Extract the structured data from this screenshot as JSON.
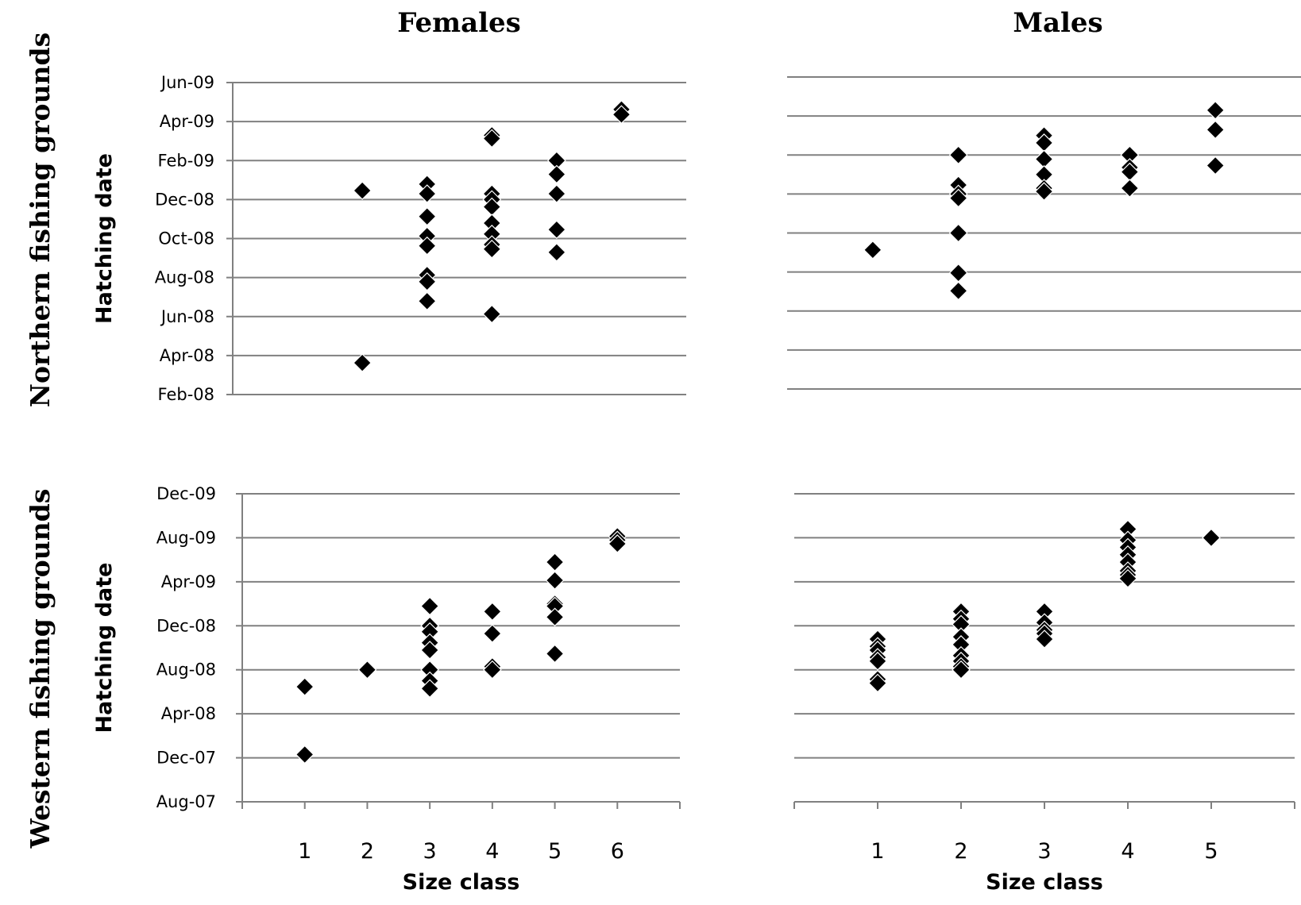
{
  "figure": {
    "column_titles": [
      "Females",
      "Males"
    ],
    "row_titles": [
      "Northern fishing grounds",
      "Western fishing grounds"
    ]
  },
  "chart_data": [
    {
      "panel": "females-northern",
      "type": "scatter",
      "column": "Females",
      "row": "Northern fishing grounds",
      "ylabel": "Hatching date",
      "xlabel": "",
      "y_axis": "date",
      "ylim": [
        "2008-02-01",
        "2009-06-01"
      ],
      "yticks": [
        "Feb-08",
        "Apr-08",
        "Jun-08",
        "Aug-08",
        "Oct-08",
        "Dec-08",
        "Feb-09",
        "Apr-09",
        "Jun-09"
      ],
      "show_ytick_labels": true,
      "xlim": [
        0,
        7
      ],
      "xticks": [],
      "x_axis_ticks": false,
      "grid": true,
      "points": [
        {
          "x": 2,
          "y": "2008-12-15"
        },
        {
          "x": 2,
          "y": "2008-03-20"
        },
        {
          "x": 3,
          "y": "2008-12-25"
        },
        {
          "x": 3,
          "y": "2008-12-10"
        },
        {
          "x": 3,
          "y": "2008-11-05"
        },
        {
          "x": 3,
          "y": "2008-10-05"
        },
        {
          "x": 3,
          "y": "2008-09-20"
        },
        {
          "x": 3,
          "y": "2008-08-05"
        },
        {
          "x": 3,
          "y": "2008-07-25"
        },
        {
          "x": 3,
          "y": "2008-06-25"
        },
        {
          "x": 4,
          "y": "2009-03-10"
        },
        {
          "x": 4,
          "y": "2009-03-05"
        },
        {
          "x": 4,
          "y": "2008-12-10"
        },
        {
          "x": 4,
          "y": "2008-12-01"
        },
        {
          "x": 4,
          "y": "2008-11-20"
        },
        {
          "x": 4,
          "y": "2008-10-25"
        },
        {
          "x": 4,
          "y": "2008-10-08"
        },
        {
          "x": 4,
          "y": "2008-09-22"
        },
        {
          "x": 4,
          "y": "2008-09-15"
        },
        {
          "x": 4,
          "y": "2008-06-05"
        },
        {
          "x": 5,
          "y": "2009-02-01"
        },
        {
          "x": 5,
          "y": "2009-01-10"
        },
        {
          "x": 5,
          "y": "2008-12-10"
        },
        {
          "x": 5,
          "y": "2008-10-15"
        },
        {
          "x": 5,
          "y": "2008-09-10"
        },
        {
          "x": 6,
          "y": "2009-04-20"
        },
        {
          "x": 6,
          "y": "2009-04-12"
        }
      ]
    },
    {
      "panel": "males-northern",
      "type": "scatter",
      "column": "Males",
      "row": "Northern fishing grounds",
      "ylabel": "",
      "xlabel": "",
      "y_axis": "date",
      "ylim": [
        "2008-02-01",
        "2009-06-01"
      ],
      "yticks": [
        "Feb-08",
        "Apr-08",
        "Jun-08",
        "Aug-08",
        "Oct-08",
        "Dec-08",
        "Feb-09",
        "Apr-09",
        "Jun-09"
      ],
      "show_ytick_labels": false,
      "xlim": [
        0,
        6
      ],
      "xticks": [],
      "x_axis_ticks": false,
      "grid": true,
      "points": [
        {
          "x": 1,
          "y": "2008-09-05"
        },
        {
          "x": 2,
          "y": "2009-02-01"
        },
        {
          "x": 2,
          "y": "2008-12-15"
        },
        {
          "x": 2,
          "y": "2008-12-01"
        },
        {
          "x": 2,
          "y": "2008-11-25"
        },
        {
          "x": 2,
          "y": "2008-10-01"
        },
        {
          "x": 2,
          "y": "2008-07-30"
        },
        {
          "x": 2,
          "y": "2008-07-02"
        },
        {
          "x": 3,
          "y": "2009-03-01"
        },
        {
          "x": 3,
          "y": "2009-02-20"
        },
        {
          "x": 3,
          "y": "2009-01-25"
        },
        {
          "x": 3,
          "y": "2009-01-01"
        },
        {
          "x": 3,
          "y": "2008-12-10"
        },
        {
          "x": 3,
          "y": "2008-12-05"
        },
        {
          "x": 4,
          "y": "2009-02-01"
        },
        {
          "x": 4,
          "y": "2009-01-12"
        },
        {
          "x": 4,
          "y": "2009-01-05"
        },
        {
          "x": 4,
          "y": "2008-12-10"
        },
        {
          "x": 5,
          "y": "2009-04-10"
        },
        {
          "x": 5,
          "y": "2009-03-10"
        },
        {
          "x": 5,
          "y": "2009-01-15"
        }
      ]
    },
    {
      "panel": "females-western",
      "type": "scatter",
      "column": "Females",
      "row": "Western fishing grounds",
      "ylabel": "Hatching date",
      "xlabel": "Size class",
      "y_axis": "date",
      "ylim": [
        "2007-08-01",
        "2009-12-01"
      ],
      "yticks": [
        "Aug-07",
        "Dec-07",
        "Apr-08",
        "Aug-08",
        "Dec-08",
        "Apr-09",
        "Aug-09",
        "Dec-09"
      ],
      "show_ytick_labels": true,
      "xlim": [
        0,
        7
      ],
      "xticks": [
        1,
        2,
        3,
        4,
        5,
        6
      ],
      "x_axis_ticks": true,
      "grid": true,
      "points": [
        {
          "x": 1,
          "y": "2008-06-15"
        },
        {
          "x": 1,
          "y": "2007-12-10"
        },
        {
          "x": 2,
          "y": "2008-08-01"
        },
        {
          "x": 3,
          "y": "2009-01-25"
        },
        {
          "x": 3,
          "y": "2008-12-01"
        },
        {
          "x": 3,
          "y": "2008-11-15"
        },
        {
          "x": 3,
          "y": "2008-10-15"
        },
        {
          "x": 3,
          "y": "2008-09-25"
        },
        {
          "x": 3,
          "y": "2008-08-01"
        },
        {
          "x": 3,
          "y": "2008-07-01"
        },
        {
          "x": 3,
          "y": "2008-06-10"
        },
        {
          "x": 4,
          "y": "2009-01-10"
        },
        {
          "x": 4,
          "y": "2008-11-10"
        },
        {
          "x": 4,
          "y": "2008-08-10"
        },
        {
          "x": 4,
          "y": "2008-08-01"
        },
        {
          "x": 5,
          "y": "2009-05-25"
        },
        {
          "x": 5,
          "y": "2009-04-05"
        },
        {
          "x": 5,
          "y": "2009-02-01"
        },
        {
          "x": 5,
          "y": "2009-01-25"
        },
        {
          "x": 5,
          "y": "2008-12-25"
        },
        {
          "x": 5,
          "y": "2008-09-15"
        },
        {
          "x": 6,
          "y": "2009-08-05"
        },
        {
          "x": 6,
          "y": "2009-07-25"
        },
        {
          "x": 6,
          "y": "2009-07-15"
        }
      ]
    },
    {
      "panel": "males-western",
      "type": "scatter",
      "column": "Males",
      "row": "Western fishing grounds",
      "ylabel": "",
      "xlabel": "Size class",
      "y_axis": "date",
      "ylim": [
        "2007-08-01",
        "2009-12-01"
      ],
      "yticks": [
        "Aug-07",
        "Dec-07",
        "Apr-08",
        "Aug-08",
        "Dec-08",
        "Apr-09",
        "Aug-09",
        "Dec-09"
      ],
      "show_ytick_labels": false,
      "xlim": [
        0,
        6
      ],
      "xticks": [
        1,
        2,
        3,
        4,
        5
      ],
      "x_axis_ticks": true,
      "grid": true,
      "points": [
        {
          "x": 1,
          "y": "2008-10-25"
        },
        {
          "x": 1,
          "y": "2008-10-05"
        },
        {
          "x": 1,
          "y": "2008-09-25"
        },
        {
          "x": 1,
          "y": "2008-09-05"
        },
        {
          "x": 1,
          "y": "2008-08-25"
        },
        {
          "x": 1,
          "y": "2008-07-05"
        },
        {
          "x": 1,
          "y": "2008-06-25"
        },
        {
          "x": 2,
          "y": "2009-01-10"
        },
        {
          "x": 2,
          "y": "2008-12-20"
        },
        {
          "x": 2,
          "y": "2008-12-05"
        },
        {
          "x": 2,
          "y": "2008-11-01"
        },
        {
          "x": 2,
          "y": "2008-10-10"
        },
        {
          "x": 2,
          "y": "2008-09-10"
        },
        {
          "x": 2,
          "y": "2008-08-25"
        },
        {
          "x": 2,
          "y": "2008-08-10"
        },
        {
          "x": 2,
          "y": "2008-08-01"
        },
        {
          "x": 3,
          "y": "2009-01-10"
        },
        {
          "x": 3,
          "y": "2008-12-10"
        },
        {
          "x": 3,
          "y": "2008-11-20"
        },
        {
          "x": 3,
          "y": "2008-11-10"
        },
        {
          "x": 3,
          "y": "2008-10-25"
        },
        {
          "x": 4,
          "y": "2009-08-25"
        },
        {
          "x": 4,
          "y": "2009-07-25"
        },
        {
          "x": 4,
          "y": "2009-07-05"
        },
        {
          "x": 4,
          "y": "2009-06-15"
        },
        {
          "x": 4,
          "y": "2009-05-25"
        },
        {
          "x": 4,
          "y": "2009-05-01"
        },
        {
          "x": 4,
          "y": "2009-04-20"
        },
        {
          "x": 4,
          "y": "2009-04-10"
        },
        {
          "x": 5,
          "y": "2009-08-01"
        }
      ]
    }
  ]
}
